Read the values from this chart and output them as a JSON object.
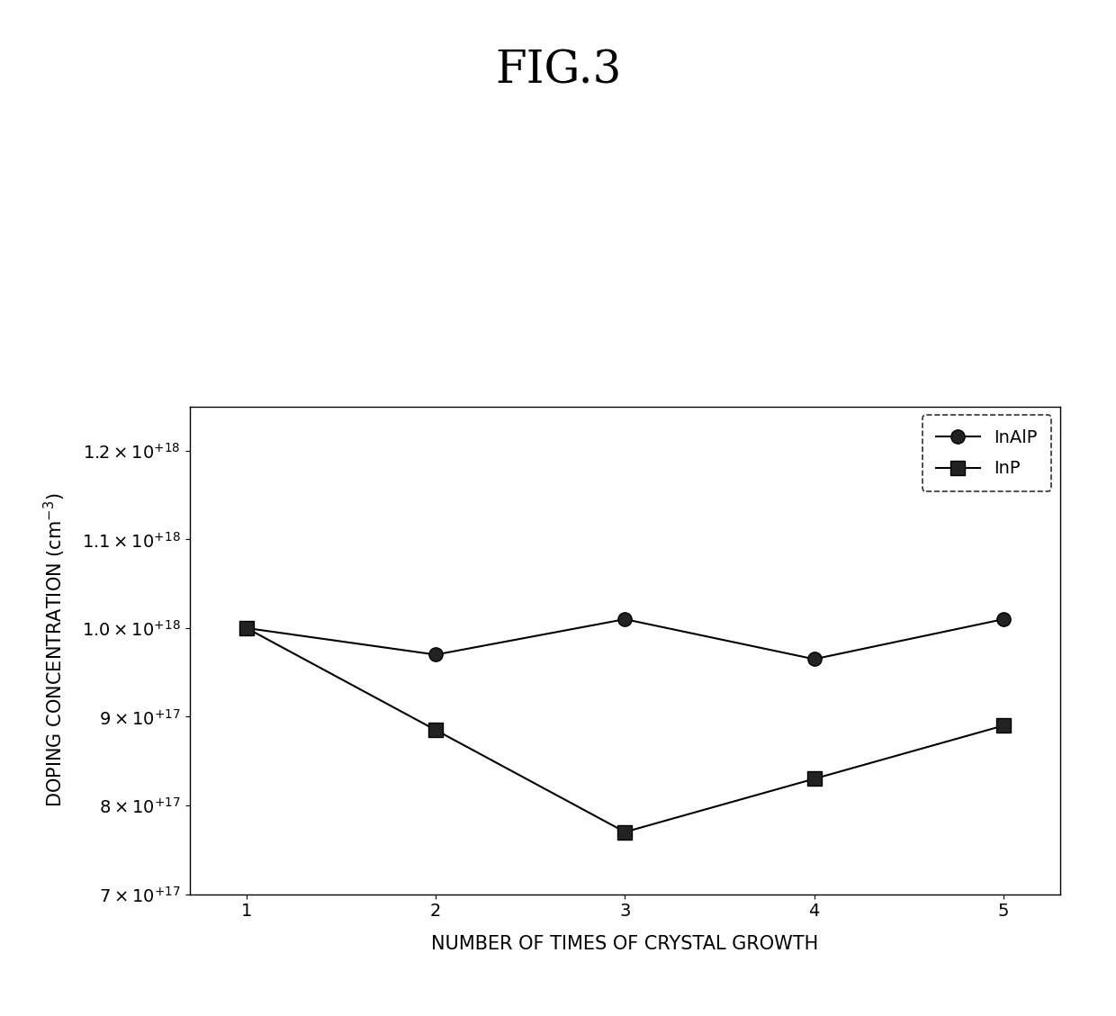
{
  "title": "FIG.3",
  "xlabel": "NUMBER OF TIMES OF CRYSTAL GROWTH",
  "ylabel": "DOPING CONCENTRATION (cm$^{-3}$)",
  "x": [
    1,
    2,
    3,
    4,
    5
  ],
  "inAlP_y": [
    1e+18,
    9.7e+17,
    1.01e+18,
    9.65e+17,
    1.01e+18
  ],
  "inP_y": [
    1e+18,
    8.85e+17,
    7.7e+17,
    8.3e+17,
    8.9e+17
  ],
  "ylim_low": 7e+17,
  "ylim_high": 1.25e+18,
  "yticks": [
    7e+17,
    8e+17,
    9e+17,
    1e+18,
    1.1e+18,
    1.2e+18
  ],
  "inAlP_label": "InAlP",
  "inP_label": "InP",
  "line_color": "#000000",
  "marker_inAlP": "o",
  "marker_inP": "s",
  "marker_size": 11,
  "line_width": 1.5,
  "legend_loc": "upper right",
  "background_color": "#ffffff",
  "title_fontsize": 36,
  "axis_label_fontsize": 15,
  "tick_fontsize": 14,
  "legend_fontsize": 14
}
